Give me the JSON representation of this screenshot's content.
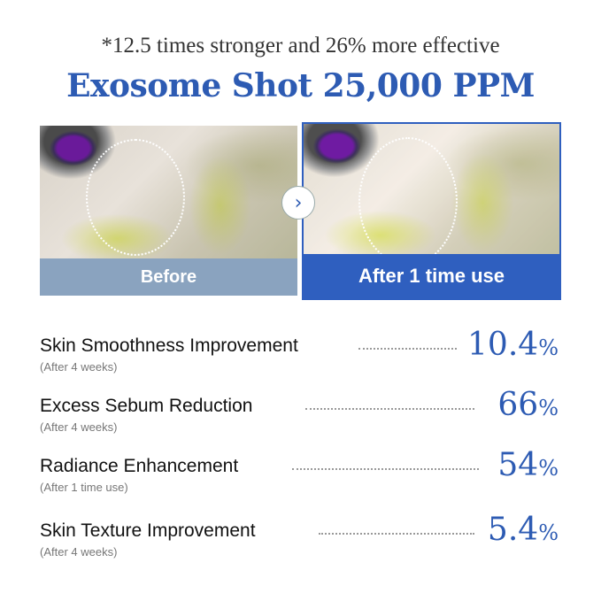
{
  "header": {
    "subtitle": "*12.5 times stronger and 26% more effective",
    "title": "Exosome Shot 25,000 PPM"
  },
  "comparison": {
    "before_label": "Before",
    "after_label": "After 1 time use",
    "arrow_icon": "chevron-right-icon",
    "before_color": "#8aa3bf",
    "after_color": "#2f5fbf"
  },
  "results": [
    {
      "name": "Skin Smoothness Improvement",
      "period": "(After 4 weeks)",
      "value": "10.4",
      "unit": "%"
    },
    {
      "name": "Excess Sebum Reduction",
      "period": "(After 4 weeks)",
      "value": "66",
      "unit": "%"
    },
    {
      "name": "Radiance Enhancement",
      "period": "(After 1 time use)",
      "value": "54",
      "unit": "%"
    },
    {
      "name": "Skin Texture Improvement",
      "period": "(After 4 weeks)",
      "value": "5.4",
      "unit": "%"
    }
  ]
}
